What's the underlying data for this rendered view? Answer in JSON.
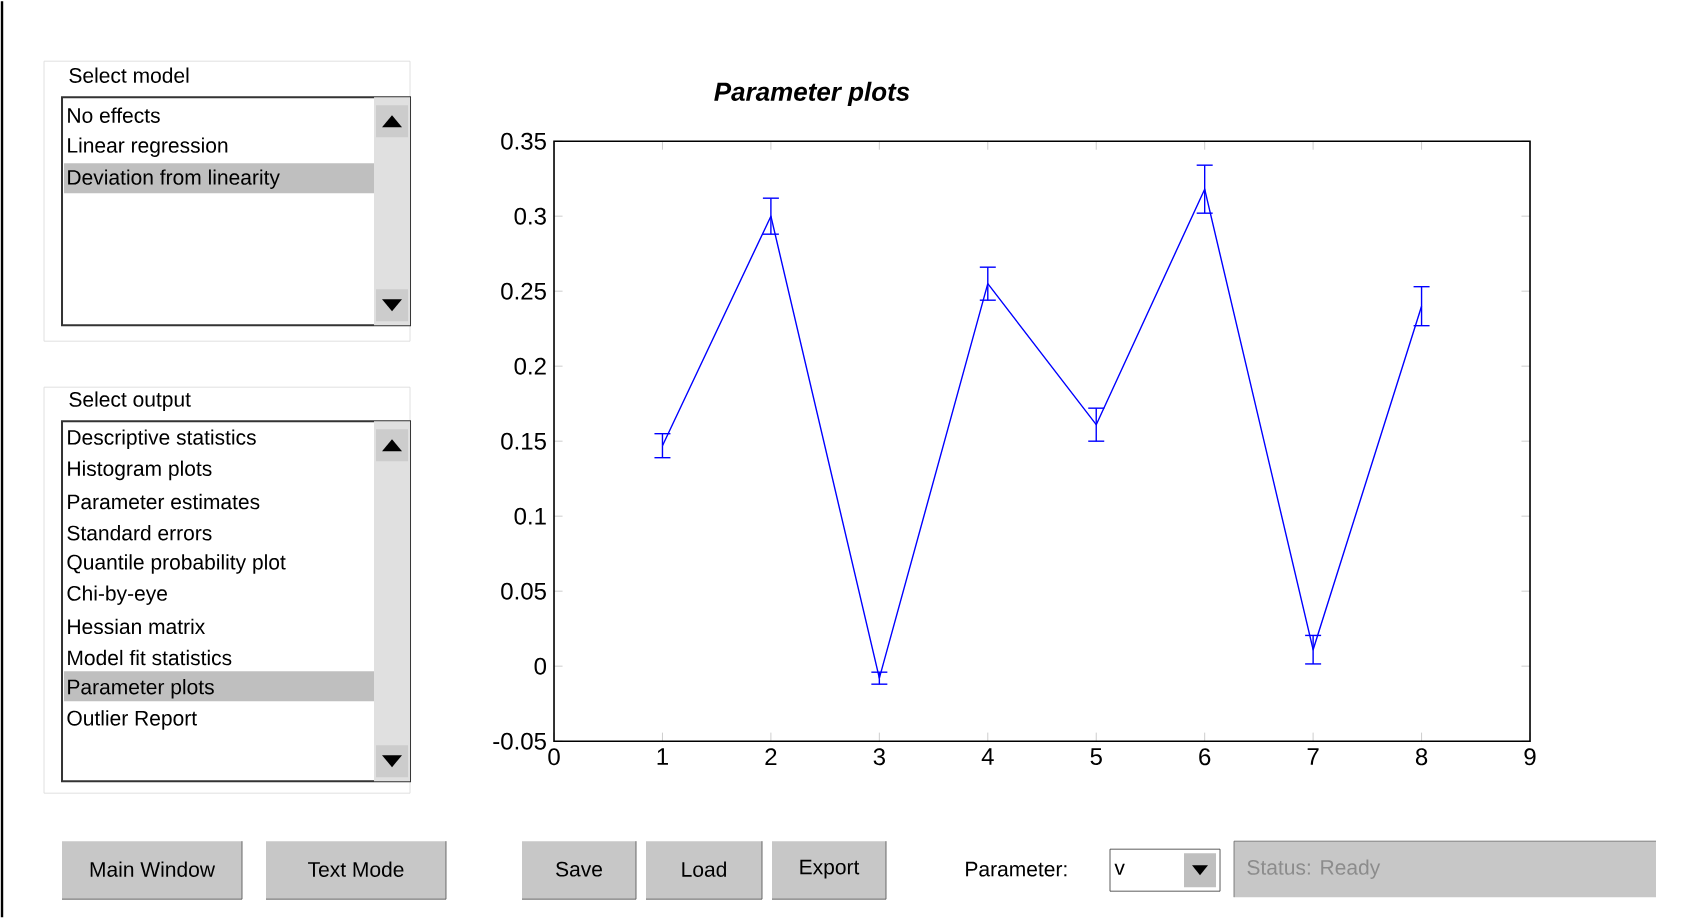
{
  "chart_data": {
    "type": "line",
    "title": "Parameter plots",
    "x": [
      1,
      2,
      3,
      4,
      5,
      6,
      7,
      8
    ],
    "series": [
      {
        "color": "#0000ff",
        "values": [
          0.147,
          0.3,
          -0.008,
          0.255,
          0.161,
          0.318,
          0.011,
          0.24
        ],
        "errors": [
          0.008,
          0.012,
          0.004,
          0.011,
          0.011,
          0.016,
          0.0095,
          0.013
        ]
      }
    ],
    "xlim": [
      0,
      9
    ],
    "xticks": [
      0,
      1,
      2,
      3,
      4,
      5,
      6,
      7,
      8,
      9
    ],
    "ylim": [
      -0.05,
      0.35
    ],
    "yticks": [
      -0.05,
      0,
      0.05,
      0.1,
      0.15,
      0.2,
      0.25,
      0.3,
      0.35
    ],
    "marker": "none",
    "line_style": "solid",
    "grid": false,
    "annotations": [
      "Select model",
      "No effects",
      "Linear regression",
      "Deviation from linearity",
      "Select output",
      "Descriptive statistics",
      "Histogram plots",
      "Parameter estimates",
      "Standard errors",
      "Quantile probability plot",
      "Chi-by-eye",
      "Hessian matrix",
      "Model fit statistics",
      "Parameter plots",
      "Outlier Report",
      "Main Window",
      "Text Mode",
      "Save",
      "Load",
      "Export",
      "Parameter:",
      "v",
      "Status: Ready"
    ]
  }
}
